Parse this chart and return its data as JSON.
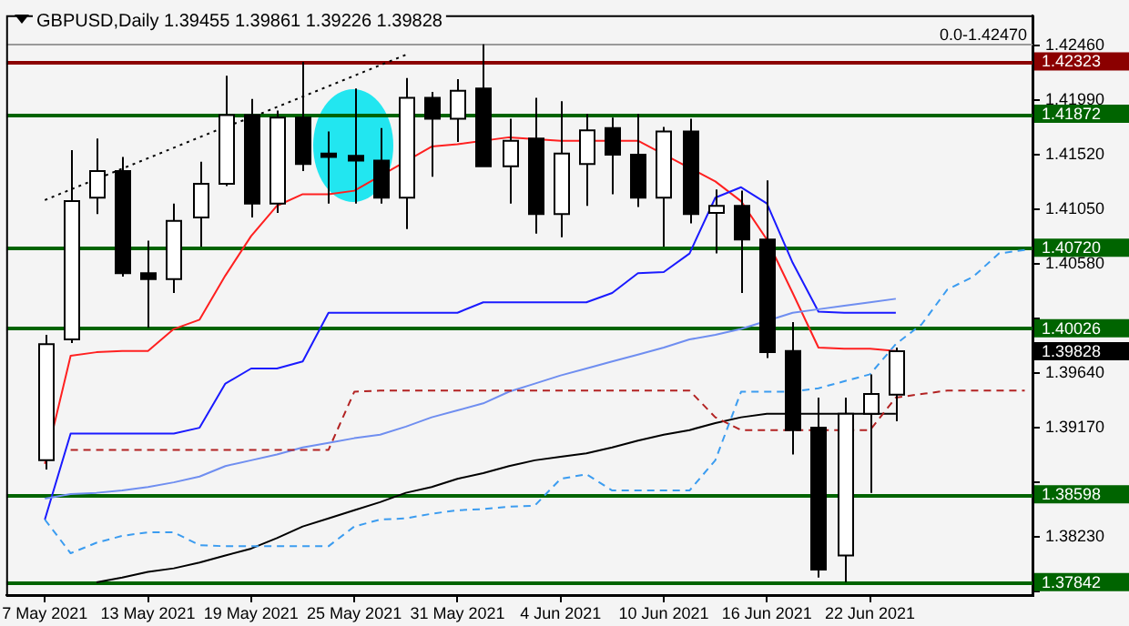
{
  "chart_data": {
    "type": "candlestick",
    "title": "GBPUSD,Daily 1.39455 1.39861 1.39226 1.39828",
    "categories": [
      "7 May 2021",
      null,
      null,
      null,
      "13 May 2021",
      null,
      null,
      null,
      "19 May 2021",
      null,
      null,
      null,
      "25 May 2021",
      null,
      null,
      null,
      "31 May 2021",
      null,
      null,
      null,
      "4 Jun 2021",
      null,
      null,
      null,
      "10 Jun 2021",
      null,
      null,
      null,
      "16 Jun 2021",
      null,
      null,
      null,
      "22 Jun 2021",
      null,
      null,
      null,
      null,
      null,
      null
    ],
    "ohlc": [
      [
        1.3889,
        1.3997,
        1.3881,
        1.3989
      ],
      [
        1.3993,
        1.4156,
        1.399,
        1.4112
      ],
      [
        1.4115,
        1.4166,
        1.4101,
        1.4138
      ],
      [
        1.4138,
        1.415,
        1.4047,
        1.405
      ],
      [
        1.405,
        1.4078,
        1.4003,
        1.4045
      ],
      [
        1.4045,
        1.411,
        1.4033,
        1.4095
      ],
      [
        1.4098,
        1.4146,
        1.4073,
        1.4127
      ],
      [
        1.4127,
        1.422,
        1.4125,
        1.4186
      ],
      [
        1.4186,
        1.42,
        1.4098,
        1.411
      ],
      [
        1.411,
        1.419,
        1.4102,
        1.4184
      ],
      [
        1.4184,
        1.4232,
        1.4138,
        1.4144
      ],
      [
        1.4153,
        1.4172,
        1.411,
        1.415
      ],
      [
        1.4151,
        1.4209,
        1.411,
        1.4147
      ],
      [
        1.4147,
        1.4175,
        1.411,
        1.4115
      ],
      [
        1.4115,
        1.4218,
        1.4088,
        1.4201
      ],
      [
        1.4201,
        1.4206,
        1.4133,
        1.4183
      ],
      [
        1.4183,
        1.4217,
        1.4163,
        1.4207
      ],
      [
        1.4209,
        1.4247,
        1.4142,
        1.4142
      ],
      [
        1.4142,
        1.4183,
        1.411,
        1.4164
      ],
      [
        1.4166,
        1.4201,
        1.4084,
        1.4101
      ],
      [
        1.4101,
        1.4198,
        1.4081,
        1.4153
      ],
      [
        1.4144,
        1.4187,
        1.4108,
        1.4173
      ],
      [
        1.4175,
        1.4184,
        1.4118,
        1.4152
      ],
      [
        1.4152,
        1.4187,
        1.4107,
        1.4115
      ],
      [
        1.4115,
        1.4176,
        1.4073,
        1.4172
      ],
      [
        1.4172,
        1.4183,
        1.4093,
        1.4101
      ],
      [
        1.4102,
        1.4122,
        1.4067,
        1.4108
      ],
      [
        1.4108,
        1.4121,
        1.4033,
        1.4079
      ],
      [
        1.4079,
        1.413,
        1.3977,
        1.3982
      ],
      [
        1.3983,
        1.4008,
        1.3894,
        1.3915
      ],
      [
        1.3917,
        1.3943,
        1.3788,
        1.3795
      ],
      [
        1.3807,
        1.3943,
        1.3784,
        1.3929
      ],
      [
        1.3929,
        1.3963,
        1.3861,
        1.3946
      ],
      [
        1.39455,
        1.39861,
        1.39226,
        1.39828
      ],
      null,
      null,
      null,
      null,
      null
    ],
    "series": [
      {
        "type": "line",
        "color": "#b22222",
        "line_style": "dashed",
        "values": [
          null,
          1.3898,
          1.3898,
          1.3898,
          1.3898,
          1.3898,
          1.3898,
          1.3898,
          1.3898,
          1.3898,
          1.3898,
          1.3898,
          1.3948,
          1.3949,
          1.3949,
          1.3949,
          1.3949,
          1.3949,
          1.3949,
          1.3949,
          1.3949,
          1.3949,
          1.3949,
          1.3949,
          1.3949,
          1.3949,
          1.3926,
          1.3915,
          1.3915,
          null,
          null,
          1.3915,
          1.3915,
          1.3943,
          1.3946,
          1.3949,
          1.3949,
          1.3949,
          1.3949
        ]
      },
      {
        "type": "line",
        "color": "#3b9cf0",
        "line_style": "dashed",
        "values": [
          1.3838,
          1.3809,
          1.3818,
          1.3824,
          1.3827,
          1.3827,
          1.3816,
          1.3815,
          1.3815,
          1.3815,
          1.3815,
          1.3815,
          1.3832,
          1.3838,
          1.3839,
          1.3843,
          1.3846,
          1.3847,
          1.3849,
          1.385,
          1.3873,
          1.3877,
          1.3863,
          1.3863,
          1.3863,
          1.3863,
          1.3889,
          1.3948,
          1.3948,
          1.3948,
          1.3951,
          1.3957,
          1.3963,
          1.3989,
          1.4006,
          1.4036,
          1.4047,
          1.4067,
          1.407
        ]
      },
      {
        "type": "line",
        "color": "#000000",
        "values": [
          null,
          null,
          1.3784,
          1.3788,
          1.3793,
          1.3796,
          1.3801,
          1.3807,
          1.3813,
          1.3822,
          1.3832,
          1.3839,
          1.3846,
          1.3853,
          1.3861,
          1.3866,
          1.3873,
          1.3878,
          1.3884,
          1.3889,
          1.3892,
          1.3895,
          1.39,
          1.3906,
          1.3911,
          1.3915,
          1.3921,
          1.3926,
          1.3929,
          1.3929,
          1.3929,
          1.3929,
          1.3929,
          1.3929,
          null,
          null,
          null,
          null,
          null
        ]
      },
      {
        "type": "line",
        "color": "#6f8ef0",
        "values": [
          1.3856,
          1.386,
          1.3861,
          1.3863,
          1.3866,
          1.387,
          1.3875,
          1.3884,
          1.3889,
          1.3894,
          1.39,
          1.3904,
          1.3908,
          1.3911,
          1.3918,
          1.3926,
          1.3932,
          1.3938,
          1.3948,
          1.3955,
          1.3962,
          1.3968,
          1.3974,
          1.398,
          1.3986,
          1.3993,
          1.3997,
          1.4002,
          null,
          1.4016,
          1.4019,
          1.4022,
          1.4025,
          1.4028,
          null,
          null,
          null,
          null,
          null
        ]
      },
      {
        "type": "line",
        "color": "#1a1aff",
        "values": [
          1.3838,
          1.3912,
          1.3912,
          1.3912,
          1.3912,
          1.3912,
          1.3917,
          1.3955,
          1.3968,
          1.3968,
          1.3974,
          1.4016,
          1.4016,
          1.4016,
          1.4016,
          1.4016,
          1.4016,
          1.4025,
          1.4025,
          1.4025,
          1.4025,
          1.4025,
          1.4033,
          1.405,
          1.4051,
          1.4067,
          1.4115,
          1.4124,
          1.411,
          1.4059,
          1.4017,
          1.4016,
          1.4016,
          1.4016,
          null,
          null,
          null,
          null,
          null
        ]
      },
      {
        "type": "line",
        "color": "#ff2020",
        "values": [
          1.3886,
          1.3979,
          1.3982,
          1.3983,
          1.3983,
          1.4002,
          1.401,
          1.4048,
          1.4082,
          1.4108,
          1.4118,
          1.4118,
          1.4121,
          null,
          null,
          1.4159,
          1.4161,
          null,
          1.4167,
          null,
          1.4164,
          null,
          null,
          1.4164,
          null,
          null,
          1.4129,
          1.4112,
          1.4079,
          1.4033,
          1.3986,
          1.3985,
          1.3985,
          1.3983,
          null,
          null,
          null,
          null,
          null
        ]
      },
      {
        "type": "line",
        "color": "#000000",
        "line_style": "dotted",
        "values": [
          1.4113,
          1.4122,
          1.4131,
          1.414,
          1.4149,
          1.4158,
          1.4167,
          1.4176,
          1.4184,
          1.4193,
          1.4202,
          1.4211,
          1.422,
          1.4229,
          1.4238,
          null,
          null,
          null,
          null,
          null,
          null,
          null,
          null,
          null,
          null,
          null,
          null,
          null,
          null,
          null,
          null,
          null,
          null,
          null,
          null,
          null,
          null,
          null,
          null
        ]
      }
    ],
    "marker": "none",
    "ylim": [
      1.3773,
      1.4272
    ],
    "yticks": [
      {
        "value": 1.4246,
        "label": "1.42460"
      },
      {
        "value": 1.4199,
        "label": "1.41990"
      },
      {
        "value": 1.4152,
        "label": "1.41520"
      },
      {
        "value": 1.4105,
        "label": "1.41050"
      },
      {
        "value": 1.4058,
        "label": "1.40580"
      },
      {
        "value": 1.4011,
        "label": null
      },
      {
        "value": 1.3964,
        "label": "1.39640"
      },
      {
        "value": 1.3917,
        "label": "1.39170"
      },
      {
        "value": 1.387,
        "label": null
      },
      {
        "value": 1.3823,
        "label": "1.38230"
      },
      {
        "value": 1.3776,
        "label": null
      }
    ],
    "ref_lines": [
      {
        "axis": "y",
        "value": 1.4247
      },
      {
        "axis": "y",
        "value": 1.42323,
        "label": "1.42323",
        "color": "#8b0000"
      },
      {
        "axis": "y",
        "value": 1.41872,
        "label": "1.41872",
        "color": "#006400"
      },
      {
        "axis": "y",
        "value": 1.4072,
        "label": "1.40720",
        "color": "#006400"
      },
      {
        "axis": "y",
        "value": 1.40026,
        "label": "1.40026",
        "color": "#006400"
      },
      {
        "axis": "y",
        "value": 1.38598,
        "label": "1.38598",
        "color": "#006400"
      },
      {
        "axis": "y",
        "value": 1.37842,
        "label": "1.37842",
        "color": "#006400"
      }
    ],
    "annotations": [
      "0.0-1.42470",
      "1.39828"
    ]
  }
}
